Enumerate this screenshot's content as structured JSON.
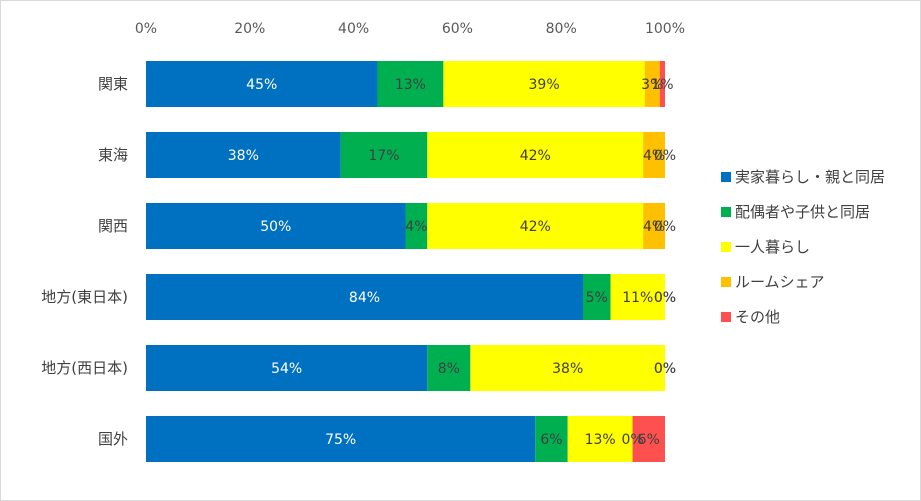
{
  "chart_data": {
    "type": "bar",
    "orientation": "horizontal",
    "stacked": "percent",
    "title": "",
    "xlabel": "",
    "ylabel": "",
    "xlim": [
      0,
      100
    ],
    "x_ticks": [
      "0%",
      "20%",
      "40%",
      "60%",
      "80%",
      "100%"
    ],
    "grid": false,
    "legend_position": "right",
    "categories": [
      "関東",
      "東海",
      "関西",
      "地方(東日本)",
      "地方(西日本)",
      "国外"
    ],
    "series": [
      {
        "name": "実家暮らし・親と同居",
        "color": "#0070c0",
        "label_color": "#ffffff",
        "values": [
          44.6,
          37.5,
          50.0,
          84.2,
          54.2,
          75.0
        ],
        "labels": [
          "45%",
          "38%",
          "50%",
          "84%",
          "54%",
          "75%"
        ]
      },
      {
        "name": "配偶者や子供と同居",
        "color": "#00b050",
        "label_color": "#404040",
        "values": [
          12.7,
          16.7,
          4.2,
          5.3,
          8.3,
          6.25
        ],
        "labels": [
          "13%",
          "17%",
          "4%",
          "5%",
          "8%",
          "6%"
        ]
      },
      {
        "name": "一人暮らし",
        "color": "#ffff00",
        "label_color": "#404040",
        "values": [
          38.8,
          41.6,
          41.6,
          10.5,
          37.5,
          12.5
        ],
        "labels": [
          "39%",
          "42%",
          "42%",
          "11%",
          "38%",
          "13%"
        ]
      },
      {
        "name": "ルームシェア",
        "color": "#ffc000",
        "label_color": "#404040",
        "values": [
          2.9,
          4.2,
          4.2,
          0,
          0,
          0
        ],
        "labels": [
          "3%",
          "4%",
          "4%",
          "0%",
          "0%",
          "0%"
        ]
      },
      {
        "name": "その他",
        "color": "#ff5050",
        "label_color": "#404040",
        "values": [
          1.0,
          0,
          0,
          0,
          0,
          6.25
        ],
        "labels": [
          "1%",
          "0%",
          "0%",
          "0%",
          "0%",
          "6%"
        ]
      }
    ]
  }
}
